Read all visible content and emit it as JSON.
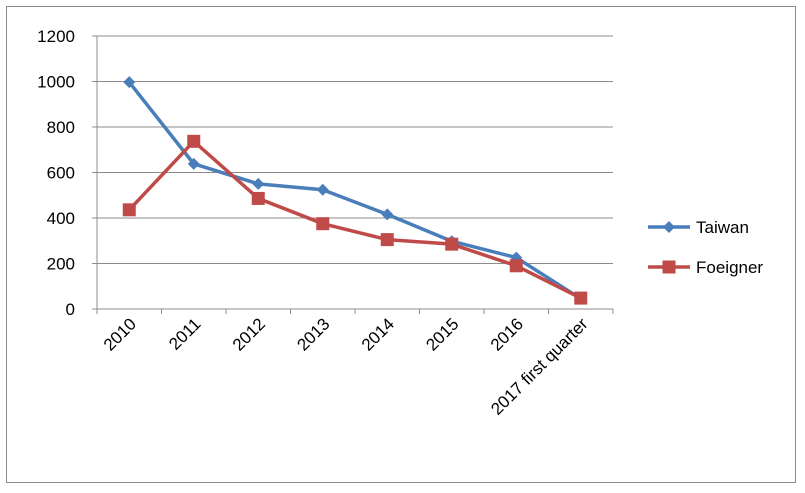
{
  "chart_data": {
    "type": "line",
    "title": "",
    "xlabel": "",
    "ylabel": "",
    "categories": [
      "2010",
      "2011",
      "2012",
      "2013",
      "2014",
      "2015",
      "2016",
      "2017 first quarter"
    ],
    "ylim": [
      0,
      1200
    ],
    "yticks": [
      "0",
      "200",
      "400",
      "600",
      "800",
      "1000",
      "1200"
    ],
    "grid": "horizontal",
    "legend_position": "right",
    "series": [
      {
        "name": "Taiwan",
        "values": [
          997,
          638,
          550,
          524,
          416,
          298,
          226,
          45
        ],
        "color": "#4a7ebb",
        "marker": "diamond"
      },
      {
        "name": "Foeigner",
        "values": [
          436,
          737,
          486,
          375,
          305,
          285,
          190,
          48
        ],
        "color": "#be4b48",
        "marker": "square"
      }
    ]
  }
}
